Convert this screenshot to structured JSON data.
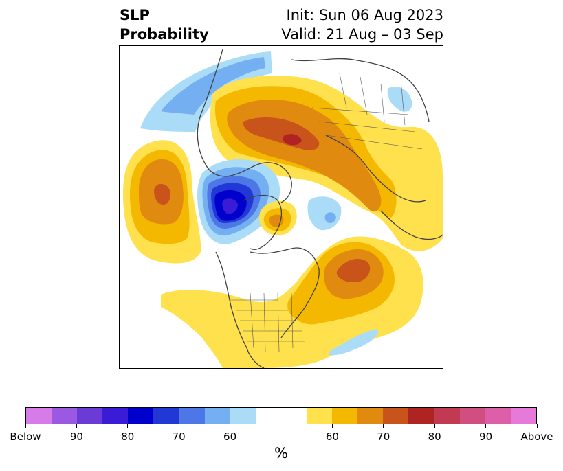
{
  "title": {
    "variable_line1": "SLP",
    "variable_line2": "Probability",
    "init": "Init: Sun 06 Aug 2023",
    "valid": "Valid: 21 Aug – 03 Sep"
  },
  "map": {
    "projection": "north-polar-stereographic",
    "field": "sea-level-pressure-tercile-probability",
    "features": [
      {
        "name": "below-normal-north-atlantic-greenland",
        "category": "below",
        "max_percent": 90
      },
      {
        "name": "below-normal-north-pacific-arc",
        "category": "below",
        "max_percent": 60
      },
      {
        "name": "below-normal-arctic-ocean-small",
        "category": "below",
        "max_percent": 60
      },
      {
        "name": "above-normal-eurasia",
        "category": "above",
        "max_percent": 80
      },
      {
        "name": "above-normal-north-pacific-aleutians",
        "category": "above",
        "max_percent": 75
      },
      {
        "name": "above-normal-canada-north-america",
        "category": "above",
        "max_percent": 75
      },
      {
        "name": "above-normal-baffin-bay",
        "category": "above",
        "max_percent": 70
      }
    ]
  },
  "colorbar": {
    "colors": [
      "#d67be8",
      "#9b58e0",
      "#6a3bd6",
      "#3a1bd6",
      "#0000cc",
      "#2238d6",
      "#4d77e6",
      "#74b0f1",
      "#aadcf8",
      "#ffffff",
      "#ffffff",
      "#ffe14d",
      "#f5b800",
      "#e08a10",
      "#c8541b",
      "#b02323",
      "#c23a52",
      "#d14f80",
      "#dc5fa8",
      "#e77ad8"
    ],
    "tick_labels": [
      "Below",
      "90",
      "80",
      "70",
      "60",
      "60",
      "70",
      "80",
      "90",
      "Above"
    ],
    "units": "%"
  }
}
